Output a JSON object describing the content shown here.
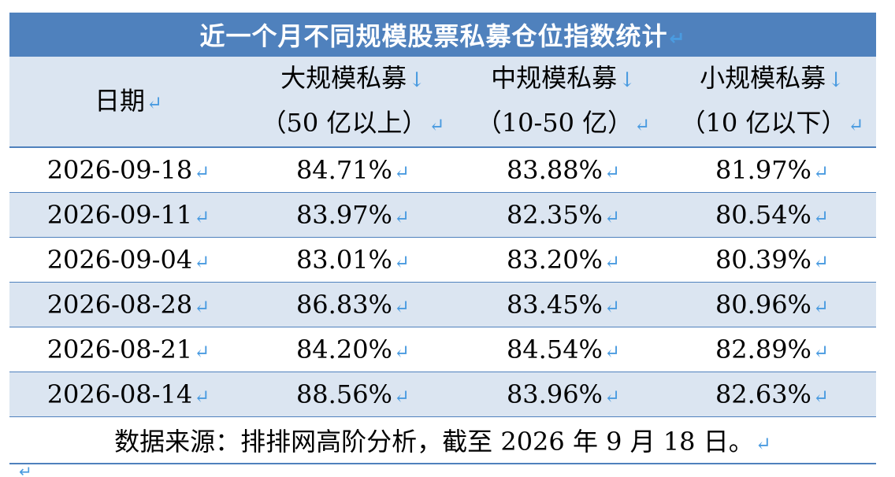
{
  "title": "近一个月不同规模股票私募仓位指数统计",
  "return_mark": "↵",
  "down_arrow": "↓",
  "header": {
    "date": "日期",
    "large": {
      "name": "大规模私募",
      "range": "（50 亿以上）"
    },
    "mid": {
      "name": "中规模私募",
      "range": "（10-50 亿）"
    },
    "small": {
      "name": "小规模私募",
      "range": "（10 亿以下）"
    }
  },
  "rows": [
    {
      "date": "2026-09-18",
      "large": "84.71%",
      "mid": "83.88%",
      "small": "81.97%"
    },
    {
      "date": "2026-09-11",
      "large": "83.97%",
      "mid": "82.35%",
      "small": "80.54%"
    },
    {
      "date": "2026-09-04",
      "large": "83.01%",
      "mid": "83.20%",
      "small": "80.39%"
    },
    {
      "date": "2026-08-28",
      "large": "86.83%",
      "mid": "83.45%",
      "small": "80.96%"
    },
    {
      "date": "2026-08-21",
      "large": "84.20%",
      "mid": "84.54%",
      "small": "82.89%"
    },
    {
      "date": "2026-08-14",
      "large": "88.56%",
      "mid": "83.96%",
      "small": "82.63%"
    }
  ],
  "source": "数据来源：排排网高阶分析，截至 2026 年 9 月 18 日。",
  "colors": {
    "title_bg": "#4f81bd",
    "shade": "#dbe5f1",
    "mark": "#4a9be0"
  }
}
